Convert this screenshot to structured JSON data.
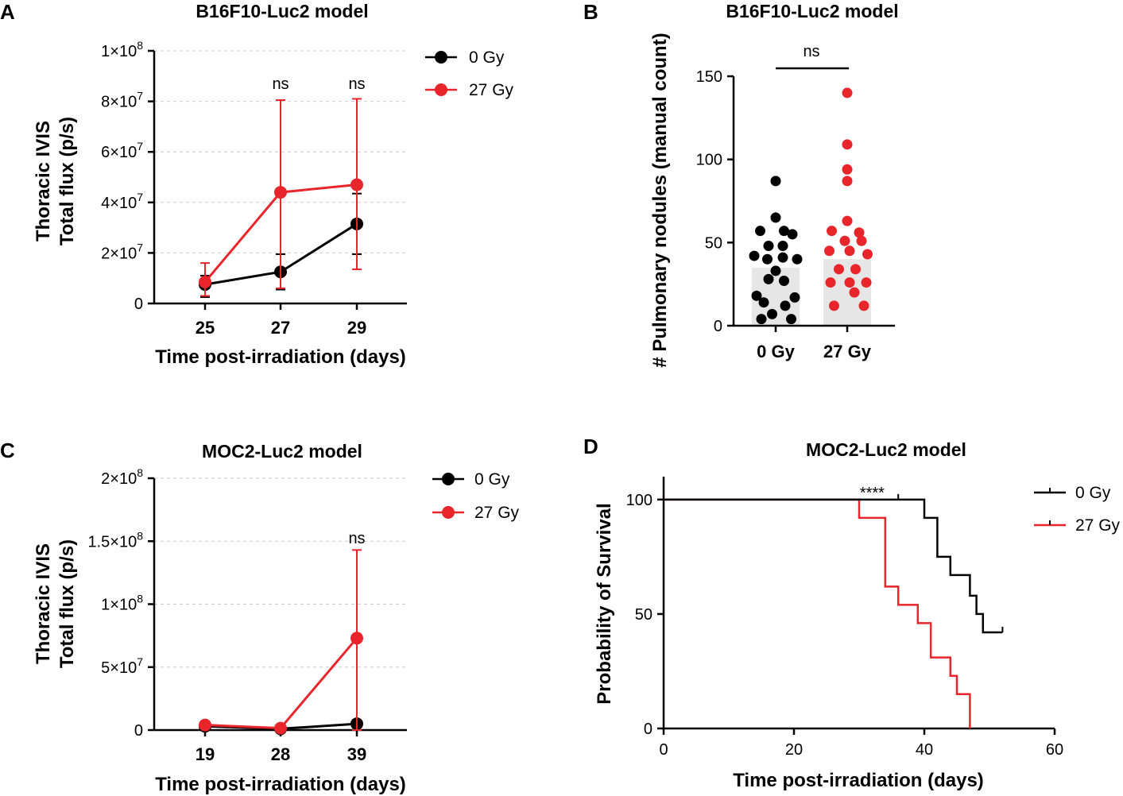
{
  "colors": {
    "control": "#000000",
    "irradiated": "#e8252a",
    "bar_fill": "#e6e6e6"
  },
  "chart_data": [
    {
      "id": "A",
      "letter": "A",
      "type": "line",
      "title": "B16F10-Luc2 model",
      "xlabel": "Time post-irradiation (days)",
      "ylabel": [
        "Thoracic IVIS",
        "Total flux (p/s)"
      ],
      "categories": [
        "25",
        "27",
        "29"
      ],
      "ylim": [
        0,
        100000000
      ],
      "yticks": [
        0,
        20000000,
        40000000,
        60000000,
        80000000,
        100000000
      ],
      "ytick_labels": [
        {
          "base": "0",
          "exp": ""
        },
        {
          "base": "2×10",
          "exp": "7"
        },
        {
          "base": "4×10",
          "exp": "7"
        },
        {
          "base": "6×10",
          "exp": "7"
        },
        {
          "base": "8×10",
          "exp": "7"
        },
        {
          "base": "1×10",
          "exp": "8"
        }
      ],
      "series": [
        {
          "name": "0 Gy",
          "values": [
            7500000,
            12500000,
            31500000
          ],
          "err_low": [
            2500000,
            5500000,
            19500000
          ],
          "err_high": [
            11000000,
            19500000,
            43500000
          ]
        },
        {
          "name": "27 Gy",
          "values": [
            8500000,
            44000000,
            47000000
          ],
          "err_low": [
            3000000,
            6000000,
            13500000
          ],
          "err_high": [
            16000000,
            80500000,
            81000000
          ]
        }
      ],
      "annotations": [
        {
          "category": "27",
          "text": "ns"
        },
        {
          "category": "29",
          "text": "ns"
        }
      ],
      "legend": [
        "0 Gy",
        "27 Gy"
      ]
    },
    {
      "id": "B",
      "letter": "B",
      "type": "scatter",
      "title": "B16F10-Luc2 model",
      "ylabel": "# Pulmonary nodules (manual count)",
      "categories": [
        "0 Gy",
        "27 Gy"
      ],
      "ylim": [
        0,
        150
      ],
      "yticks": [
        0,
        50,
        100,
        150
      ],
      "bar_values": [
        35,
        40
      ],
      "groups": [
        {
          "name": "0 Gy",
          "points": [
            {
              "dx": 0,
              "y": 87
            },
            {
              "dx": 0,
              "y": 65
            },
            {
              "dx": -0.65,
              "y": 57
            },
            {
              "dx": 0.35,
              "y": 57
            },
            {
              "dx": 0.7,
              "y": 55
            },
            {
              "dx": -0.3,
              "y": 48
            },
            {
              "dx": 0.3,
              "y": 48
            },
            {
              "dx": -0.9,
              "y": 42
            },
            {
              "dx": -0.35,
              "y": 40
            },
            {
              "dx": 0.3,
              "y": 41
            },
            {
              "dx": 0.9,
              "y": 40
            },
            {
              "dx": 0,
              "y": 33
            },
            {
              "dx": -0.3,
              "y": 28
            },
            {
              "dx": 0.35,
              "y": 27
            },
            {
              "dx": -0.8,
              "y": 18
            },
            {
              "dx": 0.8,
              "y": 17
            },
            {
              "dx": -0.5,
              "y": 14
            },
            {
              "dx": 0.4,
              "y": 12
            },
            {
              "dx": -0.15,
              "y": 7
            },
            {
              "dx": -0.6,
              "y": 4
            },
            {
              "dx": 0.65,
              "y": 4
            }
          ]
        },
        {
          "name": "27 Gy",
          "points": [
            {
              "dx": 0,
              "y": 140
            },
            {
              "dx": 0,
              "y": 109
            },
            {
              "dx": 0,
              "y": 94
            },
            {
              "dx": 0,
              "y": 87
            },
            {
              "dx": 0,
              "y": 63
            },
            {
              "dx": -0.65,
              "y": 57
            },
            {
              "dx": 0.5,
              "y": 56
            },
            {
              "dx": -0.1,
              "y": 51
            },
            {
              "dx": 0.6,
              "y": 51
            },
            {
              "dx": -0.75,
              "y": 45
            },
            {
              "dx": 0.1,
              "y": 45
            },
            {
              "dx": 0.85,
              "y": 43
            },
            {
              "dx": -0.35,
              "y": 34
            },
            {
              "dx": 0.35,
              "y": 34
            },
            {
              "dx": -0.7,
              "y": 26
            },
            {
              "dx": 0.1,
              "y": 26
            },
            {
              "dx": 0.8,
              "y": 26
            },
            {
              "dx": 0.3,
              "y": 20
            },
            {
              "dx": -0.55,
              "y": 12
            },
            {
              "dx": 0.7,
              "y": 12
            }
          ]
        }
      ],
      "significance": {
        "text": "ns"
      }
    },
    {
      "id": "C",
      "letter": "C",
      "type": "line",
      "title": "MOC2-Luc2 model",
      "xlabel": "Time post-irradiation (days)",
      "ylabel": [
        "Thoracic IVIS",
        "Total flux (p/s)"
      ],
      "categories": [
        "19",
        "28",
        "39"
      ],
      "ylim": [
        0,
        200000000
      ],
      "yticks": [
        0,
        50000000,
        100000000,
        150000000,
        200000000
      ],
      "ytick_labels": [
        {
          "base": "0",
          "exp": ""
        },
        {
          "base": "5×10",
          "exp": "7"
        },
        {
          "base": "1×10",
          "exp": "8"
        },
        {
          "base": "1.5×10",
          "exp": "8"
        },
        {
          "base": "2×10",
          "exp": "8"
        }
      ],
      "series": [
        {
          "name": "0 Gy",
          "values": [
            3000000,
            1000000,
            5000000
          ],
          "err_low": [
            2000000,
            500000,
            2000000
          ],
          "err_high": [
            4000000,
            1500000,
            8000000
          ]
        },
        {
          "name": "27 Gy",
          "values": [
            4000000,
            1500000,
            73000000
          ],
          "err_low": [
            2500000,
            1000000,
            0
          ],
          "err_high": [
            5500000,
            2000000,
            143000000
          ]
        }
      ],
      "annotations": [
        {
          "category": "39",
          "text": "ns"
        }
      ],
      "legend": [
        "0 Gy",
        "27 Gy"
      ]
    },
    {
      "id": "D",
      "letter": "D",
      "type": "line",
      "subtype": "survival",
      "title": "MOC2-Luc2 model",
      "xlabel": "Time post-irradiation (days)",
      "ylabel": "Probability of Survival",
      "xlim": [
        0,
        60
      ],
      "xticks": [
        0,
        20,
        40,
        60
      ],
      "ylim": [
        0,
        110
      ],
      "yticks": [
        0,
        50,
        100
      ],
      "series": [
        {
          "name": "0 Gy",
          "points": [
            [
              0,
              100
            ],
            [
              40,
              100
            ],
            [
              40,
              92
            ],
            [
              42,
              92
            ],
            [
              42,
              75
            ],
            [
              44,
              75
            ],
            [
              44,
              67
            ],
            [
              47,
              67
            ],
            [
              47,
              58
            ],
            [
              48,
              58
            ],
            [
              48,
              50
            ],
            [
              49,
              50
            ],
            [
              49,
              42
            ],
            [
              52,
              42
            ]
          ],
          "censor": [
            [
              36,
              100
            ],
            [
              52,
              42
            ]
          ]
        },
        {
          "name": "27 Gy",
          "points": [
            [
              0,
              100
            ],
            [
              30,
              100
            ],
            [
              30,
              92
            ],
            [
              34,
              92
            ],
            [
              34,
              62
            ],
            [
              36,
              62
            ],
            [
              36,
              54
            ],
            [
              39,
              54
            ],
            [
              39,
              46
            ],
            [
              41,
              46
            ],
            [
              41,
              31
            ],
            [
              44,
              31
            ],
            [
              44,
              23
            ],
            [
              45,
              23
            ],
            [
              45,
              15
            ],
            [
              47,
              15
            ],
            [
              47,
              0
            ]
          ],
          "censor": []
        }
      ],
      "significance": {
        "text": "****",
        "x": 32
      },
      "legend": [
        "0 Gy",
        "27 Gy"
      ]
    }
  ]
}
